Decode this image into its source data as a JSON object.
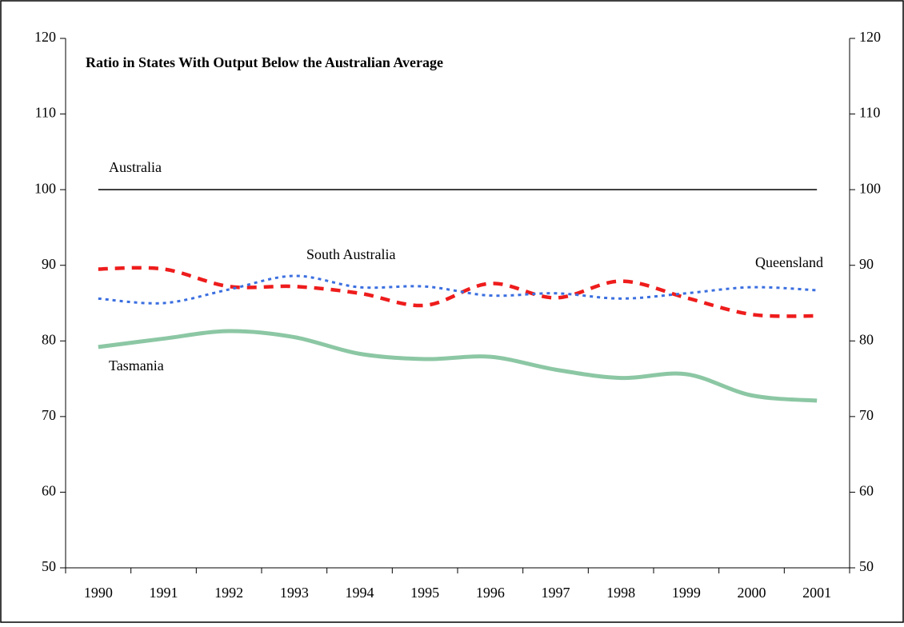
{
  "chart_data": {
    "type": "line",
    "title": "Ratio in States With Output Below the Australian Average",
    "categories": [
      "1990",
      "1991",
      "1992",
      "1993",
      "1994",
      "1995",
      "1996",
      "1997",
      "1998",
      "1999",
      "2000",
      "2001"
    ],
    "series": [
      {
        "name": "Australia",
        "color": "#000000",
        "style": "solid",
        "values": [
          100,
          100,
          100,
          100,
          100,
          100,
          100,
          100,
          100,
          100,
          100,
          100
        ]
      },
      {
        "name": "South Australia",
        "color": "#ee1c1c",
        "style": "dashed",
        "values": [
          89.5,
          89.5,
          87.2,
          87.2,
          86.3,
          84.7,
          87.6,
          85.7,
          87.9,
          85.7,
          83.5,
          83.3
        ]
      },
      {
        "name": "Queensland",
        "color": "#3b6fe0",
        "style": "dotted",
        "values": [
          85.6,
          85.0,
          86.8,
          88.6,
          87.1,
          87.2,
          86.0,
          86.3,
          85.6,
          86.3,
          87.1,
          86.7
        ]
      },
      {
        "name": "Tasmania",
        "color": "#8cc7a4",
        "style": "thick",
        "values": [
          79.2,
          80.3,
          81.3,
          80.5,
          78.3,
          77.6,
          77.9,
          76.2,
          75.1,
          75.6,
          72.8,
          72.1
        ]
      }
    ],
    "ylim": [
      50,
      120
    ],
    "yticks": [
      50,
      60,
      70,
      80,
      90,
      100,
      110,
      120
    ],
    "y2lim": [
      50,
      120
    ],
    "y2ticks": [
      50,
      60,
      70,
      80,
      90,
      100,
      110,
      120
    ]
  }
}
